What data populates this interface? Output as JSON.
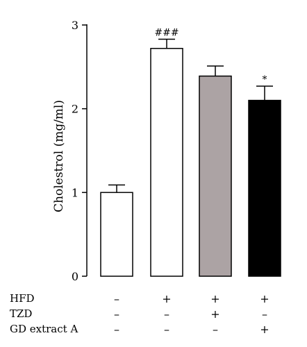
{
  "chart_data": {
    "type": "bar",
    "ylabel": "Cholestrol (mg/ml)",
    "ylim": [
      0,
      3
    ],
    "yticks": [
      0,
      1,
      2,
      3
    ],
    "grid": false,
    "bars": [
      {
        "value": 1.0,
        "error": 0.09,
        "color": "#ffffff",
        "annotation": ""
      },
      {
        "value": 2.72,
        "error": 0.11,
        "color": "#ffffff",
        "annotation": "###"
      },
      {
        "value": 2.39,
        "error": 0.12,
        "color": "#aca3a4",
        "annotation": ""
      },
      {
        "value": 2.1,
        "error": 0.17,
        "color": "#000000",
        "annotation": "*"
      }
    ],
    "treatment_rows": [
      {
        "label": "HFD",
        "signs": [
          "–",
          "+",
          "+",
          "+"
        ]
      },
      {
        "label": "TZD",
        "signs": [
          "–",
          "–",
          "+",
          "–"
        ]
      },
      {
        "label": "GD extract A",
        "signs": [
          "–",
          "–",
          "–",
          "+"
        ]
      }
    ]
  }
}
